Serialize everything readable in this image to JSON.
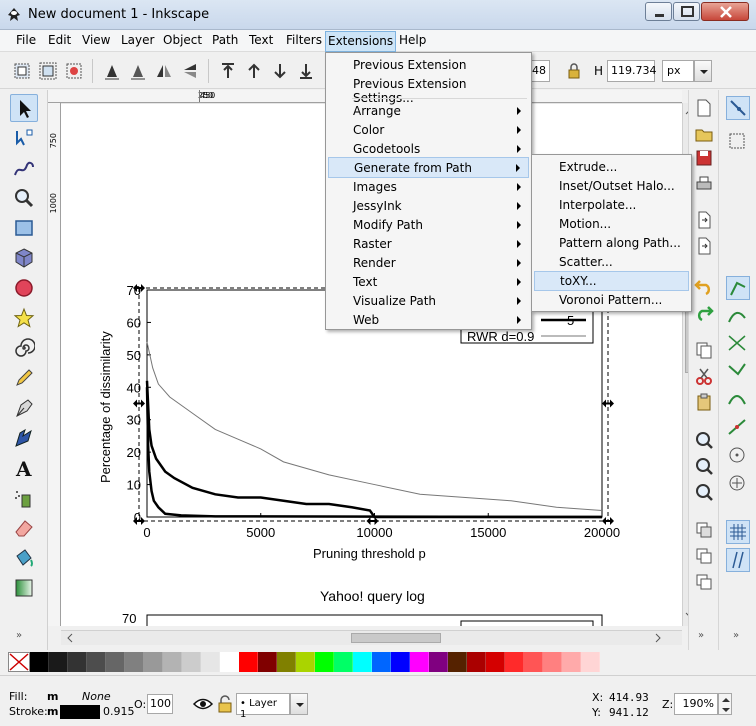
{
  "window": {
    "title": "New document 1 - Inkscape"
  },
  "menubar": [
    {
      "label": "File"
    },
    {
      "label": "Edit"
    },
    {
      "label": "View"
    },
    {
      "label": "Layer"
    },
    {
      "label": "Object"
    },
    {
      "label": "Path"
    },
    {
      "label": "Text"
    },
    {
      "label": "Filters"
    },
    {
      "label": "Extensions"
    },
    {
      "label": "Help"
    }
  ],
  "toolbar": {
    "w_value_partial": "548",
    "h_label": "H",
    "h_value": "119.734",
    "unit": "px"
  },
  "rulers": {
    "h_labels": [
      "250",
      "450"
    ],
    "v_labels": [
      "750",
      "1000"
    ]
  },
  "extensions_menu": {
    "items": [
      {
        "label": "Previous Extension",
        "submenu": false
      },
      {
        "label": "Previous Extension Settings...",
        "submenu": false
      },
      {
        "label": "Arrange",
        "submenu": true
      },
      {
        "label": "Color",
        "submenu": true
      },
      {
        "label": "Gcodetools",
        "submenu": true
      },
      {
        "label": "Generate from Path",
        "submenu": true
      },
      {
        "label": "Images",
        "submenu": true
      },
      {
        "label": "JessyInk",
        "submenu": true
      },
      {
        "label": "Modify Path",
        "submenu": true
      },
      {
        "label": "Raster",
        "submenu": true
      },
      {
        "label": "Render",
        "submenu": true
      },
      {
        "label": "Text",
        "submenu": true
      },
      {
        "label": "Visualize Path",
        "submenu": true
      },
      {
        "label": "Web",
        "submenu": true
      }
    ]
  },
  "generate_menu": {
    "items": [
      {
        "label": "Extrude..."
      },
      {
        "label": "Inset/Outset Halo..."
      },
      {
        "label": "Interpolate..."
      },
      {
        "label": "Motion..."
      },
      {
        "label": "Pattern along Path..."
      },
      {
        "label": "Scatter..."
      },
      {
        "label": "toXY..."
      },
      {
        "label": "Voronoi Pattern..."
      }
    ]
  },
  "drawing": {
    "ylabel": "Percentage of dissimilarity",
    "xlabel": "Pruning threshold p",
    "legend_partial": "5",
    "legend_rwr": "RWR d=0.9",
    "second_title": "Yahoo! query log",
    "second_ytick": "70"
  },
  "chart_data": {
    "type": "line",
    "title": "",
    "xlabel": "Pruning threshold p",
    "ylabel": "Percentage of dissimilarity",
    "xlim": [
      0,
      20000
    ],
    "ylim": [
      0,
      70
    ],
    "x_ticks": [
      "0",
      "5000",
      "10000",
      "15000",
      "20000"
    ],
    "y_ticks": [
      "0",
      "10",
      "20",
      "30",
      "40",
      "50",
      "60",
      "70"
    ],
    "series": [
      {
        "name": "RWR d=0.9",
        "style": "thin",
        "x": [
          0,
          250,
          500,
          1000,
          2000,
          3000,
          4000,
          5000,
          6000,
          8000,
          10000,
          12000,
          14000,
          16000,
          18000,
          20000
        ],
        "y": [
          54,
          46,
          41,
          37,
          32,
          27,
          24,
          21,
          17,
          13,
          10,
          7,
          6,
          5,
          3,
          2
        ]
      },
      {
        "name": "",
        "style": "thick",
        "x": [
          0,
          100,
          200,
          400,
          800,
          1200,
          2000,
          3000,
          4000,
          5000,
          6000,
          7000,
          8000,
          9000,
          9800,
          10000,
          20000
        ],
        "y": [
          42,
          27,
          22,
          18,
          14,
          12,
          9,
          7,
          6,
          6,
          5,
          4,
          4,
          3,
          2,
          0,
          0
        ]
      },
      {
        "name": "",
        "style": "thick",
        "x": [
          0,
          50,
          100,
          200,
          300,
          500,
          800,
          1500,
          3000,
          20000
        ],
        "y": [
          40,
          22,
          14,
          8,
          5,
          3,
          1,
          0.5,
          0.2,
          0
        ]
      }
    ]
  },
  "status": {
    "fill_label": "Fill:",
    "fill_value": "m",
    "fill_none": "None",
    "stroke_label": "Stroke:",
    "stroke_value": "m",
    "stroke_width": "0.915",
    "opacity_label": "O:",
    "opacity_value": "100",
    "layer": "Layer 1",
    "x_label": "X:",
    "x_value": "414.93",
    "y_label": "Y:",
    "y_value": "941.12",
    "zoom_label": "Z:",
    "zoom_value": "190%"
  },
  "palette": [
    "#000000",
    "#1a1a1a",
    "#333333",
    "#4d4d4d",
    "#666666",
    "#808080",
    "#999999",
    "#b3b3b3",
    "#cccccc",
    "#e6e6e6",
    "#ffffff",
    "#ff0000",
    "#800000",
    "#808000",
    "#aad400",
    "#00ff00",
    "#00ff66",
    "#00ffff",
    "#0066ff",
    "#0000ff",
    "#ff00ff",
    "#800080",
    "#552200",
    "#aa0000",
    "#d40000",
    "#ff2a2a",
    "#ff5555",
    "#ff8080",
    "#ffaaaa",
    "#ffd5d5"
  ]
}
